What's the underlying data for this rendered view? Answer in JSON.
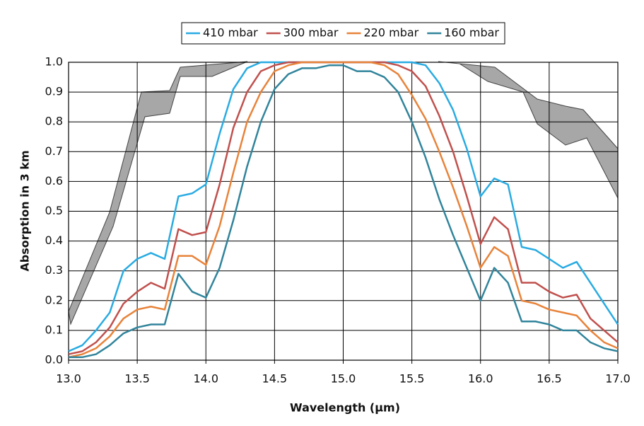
{
  "chart_data": {
    "type": "line",
    "xlabel": "Wavelength (µm)",
    "ylabel": "Absorption in 3 km",
    "x": [
      13.0,
      13.1,
      13.2,
      13.3,
      13.4,
      13.5,
      13.6,
      13.7,
      13.8,
      13.9,
      14.0,
      14.1,
      14.2,
      14.3,
      14.4,
      14.5,
      14.6,
      14.7,
      14.8,
      14.9,
      15.0,
      15.1,
      15.2,
      15.3,
      15.4,
      15.5,
      15.6,
      15.7,
      15.8,
      15.9,
      16.0,
      16.1,
      16.2,
      16.3,
      16.4,
      16.5,
      16.6,
      16.7,
      16.8,
      16.9,
      17.0
    ],
    "series": [
      {
        "name": "410 mbar",
        "color": "#29abe2",
        "values": [
          0.03,
          0.05,
          0.1,
          0.16,
          0.3,
          0.34,
          0.36,
          0.34,
          0.55,
          0.56,
          0.59,
          0.76,
          0.91,
          0.98,
          1.0,
          1.0,
          1.0,
          1.0,
          1.0,
          1.0,
          1.0,
          1.0,
          1.0,
          1.0,
          1.0,
          1.0,
          0.99,
          0.93,
          0.84,
          0.71,
          0.55,
          0.61,
          0.59,
          0.38,
          0.37,
          0.34,
          0.31,
          0.33,
          0.26,
          0.19,
          0.12
        ]
      },
      {
        "name": "300 mbar",
        "color": "#c0504d",
        "values": [
          0.02,
          0.03,
          0.06,
          0.11,
          0.19,
          0.23,
          0.26,
          0.24,
          0.44,
          0.42,
          0.43,
          0.59,
          0.78,
          0.9,
          0.97,
          0.99,
          1.0,
          1.0,
          1.0,
          1.0,
          1.0,
          1.0,
          1.0,
          1.0,
          0.99,
          0.97,
          0.92,
          0.82,
          0.7,
          0.55,
          0.39,
          0.48,
          0.44,
          0.26,
          0.26,
          0.23,
          0.21,
          0.22,
          0.14,
          0.1,
          0.06
        ]
      },
      {
        "name": "220 mbar",
        "color": "#e8833a",
        "values": [
          0.01,
          0.02,
          0.04,
          0.08,
          0.14,
          0.17,
          0.18,
          0.17,
          0.35,
          0.35,
          0.32,
          0.45,
          0.63,
          0.8,
          0.9,
          0.97,
          0.99,
          1.0,
          1.0,
          1.0,
          1.0,
          1.0,
          1.0,
          0.99,
          0.96,
          0.89,
          0.81,
          0.7,
          0.58,
          0.45,
          0.31,
          0.38,
          0.35,
          0.2,
          0.19,
          0.17,
          0.16,
          0.15,
          0.1,
          0.06,
          0.04
        ]
      },
      {
        "name": "160 mbar",
        "color": "#31849b",
        "values": [
          0.01,
          0.01,
          0.02,
          0.05,
          0.09,
          0.11,
          0.12,
          0.12,
          0.29,
          0.23,
          0.21,
          0.31,
          0.47,
          0.65,
          0.8,
          0.91,
          0.96,
          0.98,
          0.98,
          0.99,
          0.99,
          0.97,
          0.97,
          0.95,
          0.9,
          0.8,
          0.68,
          0.54,
          0.42,
          0.31,
          0.2,
          0.31,
          0.26,
          0.13,
          0.13,
          0.12,
          0.1,
          0.1,
          0.06,
          0.04,
          0.03
        ]
      }
    ],
    "xlim": [
      13,
      17
    ],
    "xticks": [
      {
        "value": 13,
        "label": "13.0"
      },
      13.5,
      {
        "value": 14,
        "label": "14.0"
      },
      14.5,
      {
        "value": 15,
        "label": "15.0"
      },
      15.5,
      {
        "value": 16,
        "label": "16.0"
      },
      16.5,
      {
        "value": 17,
        "label": "17.0"
      }
    ],
    "ylim": [
      0,
      1
    ],
    "yticks": [
      {
        "value": 0,
        "label": "0.0"
      },
      0.1,
      0.2,
      0.3,
      0.4,
      0.5,
      0.6,
      0.7,
      0.8,
      0.9,
      {
        "value": 1,
        "label": "1.0"
      }
    ],
    "grid": true,
    "legend": "top"
  }
}
